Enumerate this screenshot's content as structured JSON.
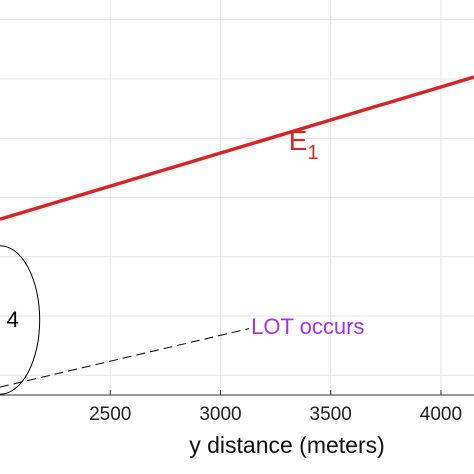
{
  "chart_data": {
    "type": "line",
    "title": "",
    "xlabel": "y distance (meters)",
    "ylabel": "",
    "xlim": [
      2000,
      4150
    ],
    "ylim": [
      0,
      1
    ],
    "x_ticks": [
      2500,
      3000,
      3500,
      4000
    ],
    "y_gridlines": [
      0.05,
      0.2,
      0.35,
      0.5,
      0.65,
      0.8,
      0.95
    ],
    "grid": true,
    "series": [
      {
        "name": "E₁",
        "color": "#d62728",
        "style": "solid",
        "x": [
          2000,
          4150
        ],
        "y": [
          0.445,
          0.805
        ]
      },
      {
        "name": "",
        "color": "#000000",
        "style": "dashed",
        "x": [
          2000,
          3130
        ],
        "y": [
          0.02,
          0.168
        ]
      }
    ],
    "annotations": [
      {
        "text_main": "E",
        "text_sub": "1",
        "color": "#d62728",
        "x": 3310,
        "y": 0.62
      },
      {
        "text": "LOT occurs",
        "color": "#a233e8",
        "x": 3130,
        "y": 0.155
      },
      {
        "text": "4",
        "color": "#000000",
        "x": 2030,
        "y": 0.19
      }
    ],
    "circle": {
      "cx": 2000,
      "cy": 0.19,
      "rx_data": 180,
      "ry_data": 0.188
    }
  }
}
